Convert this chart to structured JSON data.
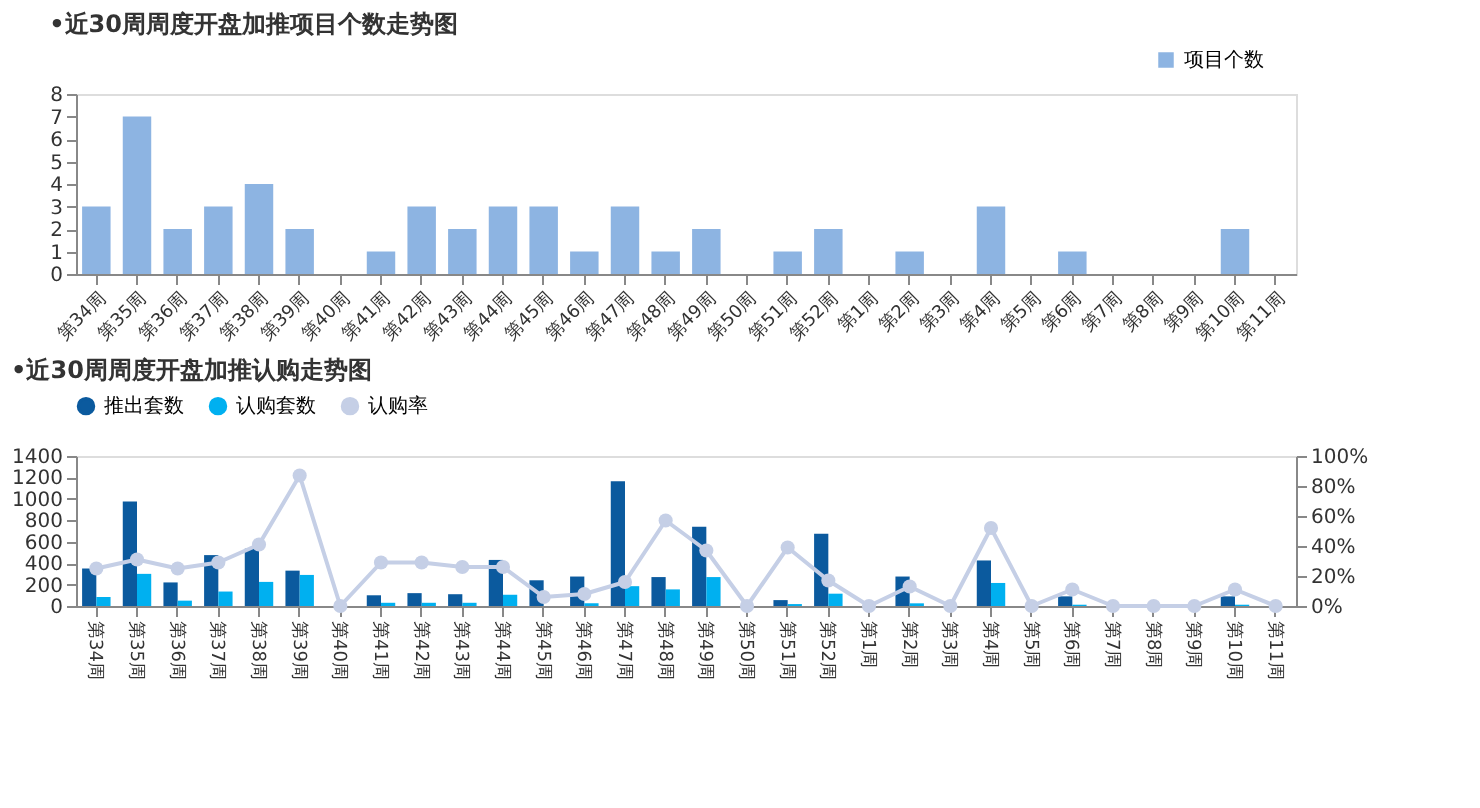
{
  "chart_data": [
    {
      "type": "bar",
      "title": "•近30周周度开盘加推项目个数走势图",
      "categories": [
        "第34周",
        "第35周",
        "第36周",
        "第37周",
        "第38周",
        "第39周",
        "第40周",
        "第41周",
        "第42周",
        "第43周",
        "第44周",
        "第45周",
        "第46周",
        "第47周",
        "第48周",
        "第49周",
        "第50周",
        "第51周",
        "第52周",
        "第1周",
        "第2周",
        "第3周",
        "第4周",
        "第5周",
        "第6周",
        "第7周",
        "第8周",
        "第9周",
        "第10周",
        "第11周"
      ],
      "series": [
        {
          "name": "项目个数",
          "color": "#8db4e2",
          "values": [
            3,
            7,
            2,
            3,
            4,
            2,
            0,
            1,
            3,
            2,
            3,
            3,
            1,
            3,
            1,
            2,
            0,
            1,
            2,
            0,
            1,
            0,
            3,
            0,
            1,
            0,
            0,
            0,
            2,
            0
          ]
        }
      ],
      "ylim": [
        0,
        8
      ],
      "yticks": [
        0,
        1,
        2,
        3,
        4,
        5,
        6,
        7,
        8
      ],
      "grid": false,
      "legend": "top right"
    },
    {
      "type": "bar",
      "title": "•近30周周度开盘加推认购走势图",
      "categories": [
        "第34周",
        "第35周",
        "第36周",
        "第37周",
        "第38周",
        "第39周",
        "第40周",
        "第41周",
        "第42周",
        "第43周",
        "第44周",
        "第45周",
        "第46周",
        "第47周",
        "第48周",
        "第49周",
        "第50周",
        "第51周",
        "第52周",
        "第1周",
        "第2周",
        "第3周",
        "第4周",
        "第5周",
        "第6周",
        "第7周",
        "第8周",
        "第9周",
        "第10周",
        "第11周"
      ],
      "series": [
        {
          "name": "推出套数",
          "color": "#0b5a9e",
          "values": [
            350,
            975,
            220,
            475,
            535,
            330,
            0,
            100,
            120,
            110,
            430,
            240,
            275,
            1165,
            270,
            740,
            0,
            55,
            675,
            0,
            275,
            0,
            425,
            0,
            90,
            0,
            0,
            0,
            90,
            0
          ]
        },
        {
          "name": "认购套数",
          "color": "#00b0f0",
          "values": [
            85,
            300,
            50,
            135,
            225,
            290,
            0,
            30,
            30,
            30,
            105,
            0,
            25,
            185,
            155,
            270,
            0,
            18,
            115,
            0,
            25,
            0,
            215,
            0,
            12,
            0,
            0,
            0,
            12,
            0
          ]
        },
        {
          "name": "认购率",
          "type": "line",
          "axis": "y2",
          "marker": "circle",
          "color": "#c5cfe6",
          "values": [
            25,
            31,
            25,
            29,
            41,
            87,
            0,
            29,
            29,
            26,
            26,
            6,
            8,
            16,
            57,
            37,
            0,
            39,
            17,
            0,
            13,
            0,
            52,
            0,
            11,
            0,
            0,
            0,
            11,
            0
          ]
        }
      ],
      "ylim": [
        0,
        1400
      ],
      "yticks": [
        0,
        200,
        400,
        600,
        800,
        1000,
        1200,
        1400
      ],
      "y2lim": [
        0,
        100
      ],
      "y2ticks": [
        {
          "value": 0,
          "label": "0%"
        },
        {
          "value": 20,
          "label": "20%"
        },
        {
          "value": 40,
          "label": "40%"
        },
        {
          "value": 60,
          "label": "60%"
        },
        {
          "value": 80,
          "label": "80%"
        },
        {
          "value": 100,
          "label": "100%"
        }
      ],
      "grid": false,
      "legend": "top"
    }
  ]
}
